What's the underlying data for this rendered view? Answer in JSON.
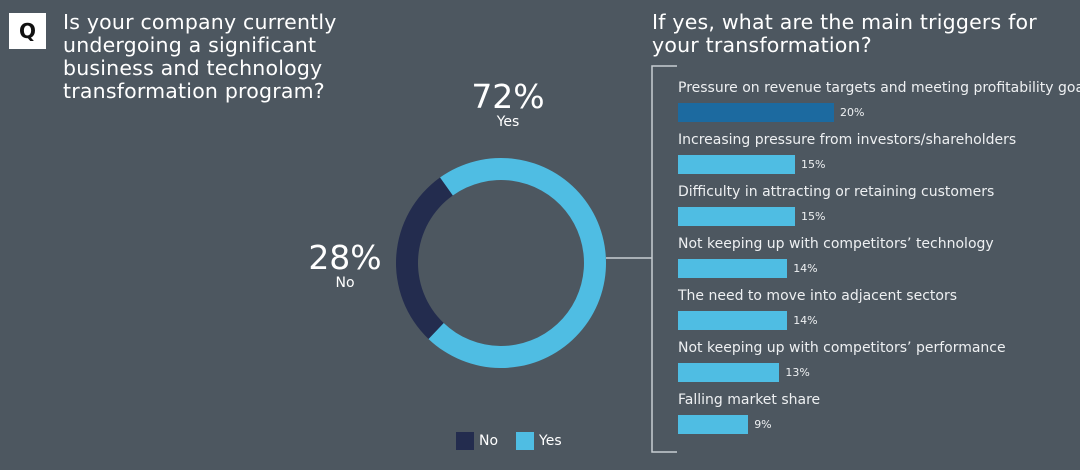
{
  "q_badge": "Q",
  "left_title": "Is your company currently\nundergoing a significant\nbusiness and technology\ntransformation program?",
  "right_title": "If yes, what are the main triggers for\nyour transformation?",
  "colors": {
    "background": "#4d5760",
    "no": "#232c4e",
    "yes": "#4fbde3",
    "highlight": "#1c6aa0"
  },
  "chart_data": [
    {
      "type": "pie",
      "donut": true,
      "title": "Is your company currently undergoing a significant business and technology transformation program?",
      "slices": [
        {
          "label": "Yes",
          "value": 72,
          "display": "72%"
        },
        {
          "label": "No",
          "value": 28,
          "display": "28%"
        }
      ],
      "legend": [
        "No",
        "Yes"
      ],
      "legend_placement": "bottom"
    },
    {
      "type": "bar",
      "orientation": "horizontal",
      "title": "If yes, what are the main triggers for your transformation?",
      "categories": [
        "Pressure on revenue targets and meeting profitability goals",
        "Increasing pressure from investors/shareholders",
        "Difficulty in attracting or retaining customers",
        "Not keeping up with competitors’ technology",
        "The need to move into adjacent sectors",
        "Not keeping up with competitors’ performance",
        "Falling market share"
      ],
      "values": [
        20,
        15,
        15,
        14,
        14,
        13,
        9
      ],
      "labels": [
        "20%",
        "15%",
        "15%",
        "14%",
        "14%",
        "13%",
        "9%"
      ],
      "highlight_index": 0,
      "xlim": [
        0,
        100
      ]
    }
  ]
}
